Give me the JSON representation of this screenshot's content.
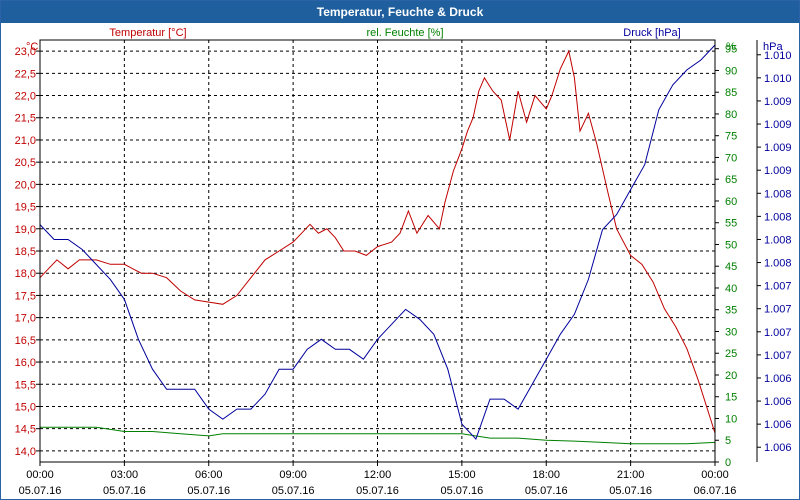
{
  "window": {
    "title": "Temperatur, Feuchte & Druck"
  },
  "colors": {
    "temperature": "#c00000",
    "humidity": "#008000",
    "pressure": "#00009c",
    "grid": "#000000",
    "tick": "#000000"
  },
  "chart_data": {
    "type": "line",
    "title": "Temperatur, Feuchte & Druck",
    "axes": {
      "temperature": {
        "label": "Temperatur [°C]",
        "unit": "°C",
        "ylim": [
          13.75,
          23.25
        ],
        "ticks": [
          "14,0",
          "14,5",
          "15,0",
          "15,5",
          "16,0",
          "16,5",
          "17,0",
          "17,5",
          "18,0",
          "18,5",
          "19,0",
          "19,5",
          "20,0",
          "20,5",
          "21,0",
          "21,5",
          "22,0",
          "22,5",
          "23,0"
        ]
      },
      "humidity": {
        "label": "rel. Feuchte [%]",
        "unit": "%",
        "ylim": [
          0,
          97
        ],
        "ticks": [
          "0",
          "5",
          "10",
          "15",
          "20",
          "25",
          "30",
          "35",
          "40",
          "45",
          "50",
          "55",
          "60",
          "65",
          "70",
          "75",
          "80",
          "85",
          "90",
          "95"
        ]
      },
      "pressure": {
        "label": "Druck [hPa]",
        "unit": "hPa",
        "ylim": [
          1005.82,
          1010.05
        ],
        "ticks": [
          "1.006",
          "1.006",
          "1.006",
          "1.006",
          "1.007",
          "1.007",
          "1.007",
          "1.007",
          "1.008",
          "1.008",
          "1.008",
          "1.008",
          "1.009",
          "1.009",
          "1.009",
          "1.009",
          "1.010",
          "1.010"
        ]
      }
    },
    "x": {
      "range_hours": [
        0,
        24
      ],
      "tick_times": [
        "00:00",
        "03:00",
        "06:00",
        "09:00",
        "12:00",
        "15:00",
        "18:00",
        "21:00",
        "00:00"
      ],
      "tick_dates": [
        "05.07.16",
        "05.07.16",
        "05.07.16",
        "05.07.16",
        "05.07.16",
        "05.07.16",
        "05.07.16",
        "05.07.16",
        "06.07.16"
      ]
    },
    "series": [
      {
        "name": "Temperatur [°C]",
        "axis": "temperature",
        "points": [
          [
            0,
            17.9
          ],
          [
            0.3,
            18.1
          ],
          [
            0.6,
            18.3
          ],
          [
            1,
            18.1
          ],
          [
            1.4,
            18.3
          ],
          [
            2,
            18.3
          ],
          [
            2.5,
            18.2
          ],
          [
            3,
            18.2
          ],
          [
            3.3,
            18.1
          ],
          [
            3.6,
            18.0
          ],
          [
            4,
            18.0
          ],
          [
            4.5,
            17.9
          ],
          [
            5,
            17.6
          ],
          [
            5.5,
            17.4
          ],
          [
            6,
            17.35
          ],
          [
            6.5,
            17.3
          ],
          [
            7,
            17.5
          ],
          [
            7.5,
            17.9
          ],
          [
            8,
            18.3
          ],
          [
            8.5,
            18.5
          ],
          [
            9,
            18.7
          ],
          [
            9.3,
            18.9
          ],
          [
            9.6,
            19.1
          ],
          [
            9.9,
            18.9
          ],
          [
            10.2,
            19.0
          ],
          [
            10.5,
            18.8
          ],
          [
            10.8,
            18.5
          ],
          [
            11.2,
            18.5
          ],
          [
            11.6,
            18.4
          ],
          [
            12,
            18.6
          ],
          [
            12.5,
            18.7
          ],
          [
            12.8,
            18.9
          ],
          [
            13.1,
            19.4
          ],
          [
            13.4,
            18.9
          ],
          [
            13.8,
            19.3
          ],
          [
            14.2,
            19.0
          ],
          [
            14.4,
            19.6
          ],
          [
            14.7,
            20.3
          ],
          [
            15,
            20.8
          ],
          [
            15.2,
            21.2
          ],
          [
            15.4,
            21.5
          ],
          [
            15.6,
            22.1
          ],
          [
            15.8,
            22.4
          ],
          [
            16.1,
            22.1
          ],
          [
            16.4,
            21.9
          ],
          [
            16.7,
            21.0
          ],
          [
            17,
            22.1
          ],
          [
            17.3,
            21.4
          ],
          [
            17.6,
            22.0
          ],
          [
            18,
            21.7
          ],
          [
            18.2,
            22.0
          ],
          [
            18.5,
            22.6
          ],
          [
            18.8,
            23.0
          ],
          [
            19,
            22.4
          ],
          [
            19.2,
            21.2
          ],
          [
            19.5,
            21.6
          ],
          [
            19.8,
            20.9
          ],
          [
            20.2,
            19.8
          ],
          [
            20.5,
            19.0
          ],
          [
            21,
            18.4
          ],
          [
            21.4,
            18.2
          ],
          [
            21.8,
            17.8
          ],
          [
            22.2,
            17.2
          ],
          [
            22.6,
            16.8
          ],
          [
            23,
            16.3
          ],
          [
            23.4,
            15.6
          ],
          [
            23.8,
            14.8
          ],
          [
            24,
            14.4
          ]
        ]
      },
      {
        "name": "rel. Feuchte [%]",
        "axis": "humidity",
        "points": [
          [
            0,
            8
          ],
          [
            1,
            8
          ],
          [
            2,
            8
          ],
          [
            3,
            7
          ],
          [
            4,
            7
          ],
          [
            5,
            6.5
          ],
          [
            6,
            6
          ],
          [
            6.5,
            6.5
          ],
          [
            7,
            6.5
          ],
          [
            8,
            6.5
          ],
          [
            9,
            6.5
          ],
          [
            10,
            6.5
          ],
          [
            11,
            6.5
          ],
          [
            12,
            6.5
          ],
          [
            13,
            6.5
          ],
          [
            14,
            6.5
          ],
          [
            15,
            6.5
          ],
          [
            16,
            5.5
          ],
          [
            17,
            5.5
          ],
          [
            18,
            5
          ],
          [
            19,
            4.8
          ],
          [
            20,
            4.5
          ],
          [
            21,
            4.2
          ],
          [
            22,
            4.2
          ],
          [
            23,
            4.2
          ],
          [
            24,
            4.5
          ]
        ]
      },
      {
        "name": "Druck [hPa]",
        "axis": "pressure",
        "points": [
          [
            0,
            1008.2
          ],
          [
            0.5,
            1008.05
          ],
          [
            1,
            1008.05
          ],
          [
            1.5,
            1007.95
          ],
          [
            2,
            1007.8
          ],
          [
            2.5,
            1007.65
          ],
          [
            3,
            1007.45
          ],
          [
            3.5,
            1007.05
          ],
          [
            4,
            1006.75
          ],
          [
            4.5,
            1006.55
          ],
          [
            5,
            1006.55
          ],
          [
            5.5,
            1006.55
          ],
          [
            6,
            1006.35
          ],
          [
            6.5,
            1006.25
          ],
          [
            7,
            1006.35
          ],
          [
            7.5,
            1006.35
          ],
          [
            8,
            1006.5
          ],
          [
            8.5,
            1006.75
          ],
          [
            9,
            1006.75
          ],
          [
            9.5,
            1006.95
          ],
          [
            10,
            1007.05
          ],
          [
            10.5,
            1006.95
          ],
          [
            11,
            1006.95
          ],
          [
            11.5,
            1006.85
          ],
          [
            12,
            1007.05
          ],
          [
            12.5,
            1007.2
          ],
          [
            13,
            1007.35
          ],
          [
            13.5,
            1007.25
          ],
          [
            14,
            1007.1
          ],
          [
            14.5,
            1006.75
          ],
          [
            15,
            1006.2
          ],
          [
            15.5,
            1006.05
          ],
          [
            16,
            1006.45
          ],
          [
            16.5,
            1006.45
          ],
          [
            17,
            1006.35
          ],
          [
            17.5,
            1006.6
          ],
          [
            18,
            1006.85
          ],
          [
            18.5,
            1007.1
          ],
          [
            19,
            1007.3
          ],
          [
            19.5,
            1007.65
          ],
          [
            20,
            1008.15
          ],
          [
            20.5,
            1008.3
          ],
          [
            21,
            1008.55
          ],
          [
            21.5,
            1008.8
          ],
          [
            22,
            1009.35
          ],
          [
            22.5,
            1009.6
          ],
          [
            23,
            1009.75
          ],
          [
            23.5,
            1009.85
          ],
          [
            24,
            1010.0
          ]
        ]
      }
    ]
  }
}
